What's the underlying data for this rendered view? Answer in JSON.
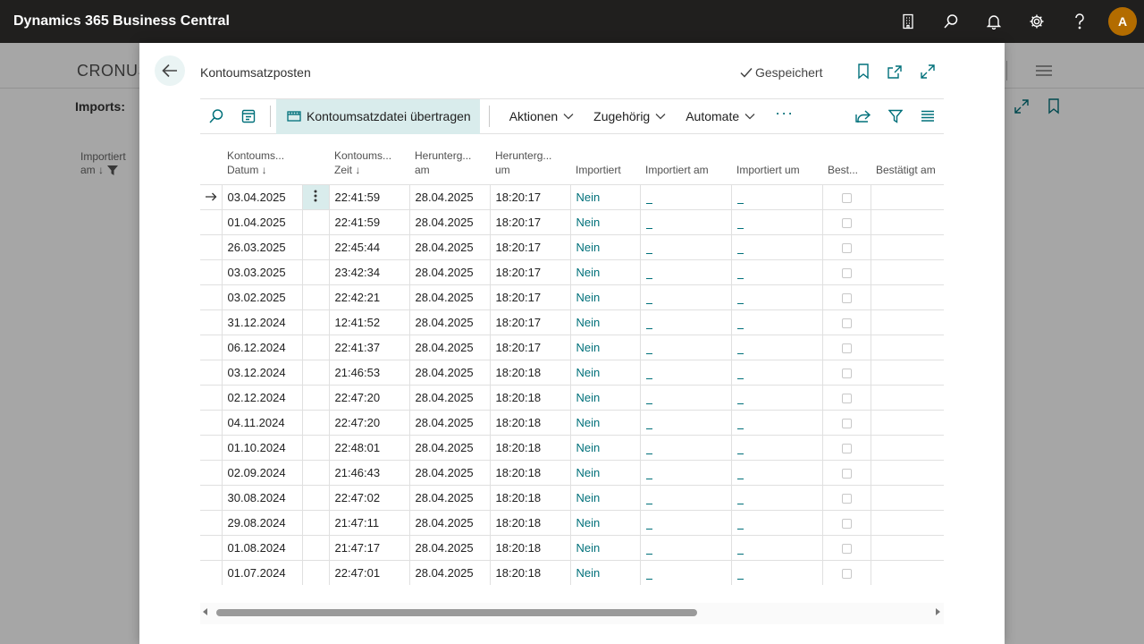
{
  "app": {
    "title": "Dynamics 365 Business Central",
    "avatar_initial": "A"
  },
  "topbar_icons": [
    "company-icon",
    "search-icon",
    "bell-icon",
    "gear-icon",
    "help-icon"
  ],
  "background_page": {
    "company": "CRONUS",
    "section": "Imports:",
    "column_label_line1": "Importiert",
    "column_label_line2": "am ↓"
  },
  "dialog": {
    "title": "Kontoumsatzposten",
    "saved_label": "Gespeichert"
  },
  "actionbar": {
    "primary_label": "Kontoumsatzdatei übertragen",
    "menus": [
      "Aktionen",
      "Zugehörig",
      "Automate"
    ],
    "more": "···"
  },
  "columns": {
    "c1a": "Kontoums...",
    "c1b": "Datum ↓",
    "c2a": "Kontoums...",
    "c2b": "Zeit ↓",
    "c3a": "Herunterg...",
    "c3b": "am",
    "c4a": "Herunterg...",
    "c4b": "um",
    "c5": "Importiert",
    "c6": "Importiert am",
    "c7": "Importiert um",
    "c8": "Best...",
    "c9": "Bestätigt am"
  },
  "rows": [
    {
      "datum": "03.04.2025",
      "zeit": "22:41:59",
      "dl_am": "28.04.2025",
      "dl_um": "18:20:17",
      "importiert": "Nein"
    },
    {
      "datum": "01.04.2025",
      "zeit": "22:41:59",
      "dl_am": "28.04.2025",
      "dl_um": "18:20:17",
      "importiert": "Nein"
    },
    {
      "datum": "26.03.2025",
      "zeit": "22:45:44",
      "dl_am": "28.04.2025",
      "dl_um": "18:20:17",
      "importiert": "Nein"
    },
    {
      "datum": "03.03.2025",
      "zeit": "23:42:34",
      "dl_am": "28.04.2025",
      "dl_um": "18:20:17",
      "importiert": "Nein"
    },
    {
      "datum": "03.02.2025",
      "zeit": "22:42:21",
      "dl_am": "28.04.2025",
      "dl_um": "18:20:17",
      "importiert": "Nein"
    },
    {
      "datum": "31.12.2024",
      "zeit": "12:41:52",
      "dl_am": "28.04.2025",
      "dl_um": "18:20:17",
      "importiert": "Nein"
    },
    {
      "datum": "06.12.2024",
      "zeit": "22:41:37",
      "dl_am": "28.04.2025",
      "dl_um": "18:20:17",
      "importiert": "Nein"
    },
    {
      "datum": "03.12.2024",
      "zeit": "21:46:53",
      "dl_am": "28.04.2025",
      "dl_um": "18:20:18",
      "importiert": "Nein"
    },
    {
      "datum": "02.12.2024",
      "zeit": "22:47:20",
      "dl_am": "28.04.2025",
      "dl_um": "18:20:18",
      "importiert": "Nein"
    },
    {
      "datum": "04.11.2024",
      "zeit": "22:47:20",
      "dl_am": "28.04.2025",
      "dl_um": "18:20:18",
      "importiert": "Nein"
    },
    {
      "datum": "01.10.2024",
      "zeit": "22:48:01",
      "dl_am": "28.04.2025",
      "dl_um": "18:20:18",
      "importiert": "Nein"
    },
    {
      "datum": "02.09.2024",
      "zeit": "21:46:43",
      "dl_am": "28.04.2025",
      "dl_um": "18:20:18",
      "importiert": "Nein"
    },
    {
      "datum": "30.08.2024",
      "zeit": "22:47:02",
      "dl_am": "28.04.2025",
      "dl_um": "18:20:18",
      "importiert": "Nein"
    },
    {
      "datum": "29.08.2024",
      "zeit": "21:47:11",
      "dl_am": "28.04.2025",
      "dl_um": "18:20:18",
      "importiert": "Nein"
    },
    {
      "datum": "01.08.2024",
      "zeit": "21:47:17",
      "dl_am": "28.04.2025",
      "dl_um": "18:20:18",
      "importiert": "Nein"
    },
    {
      "datum": "01.07.2024",
      "zeit": "22:47:01",
      "dl_am": "28.04.2025",
      "dl_um": "18:20:18",
      "importiert": "Nein"
    }
  ],
  "selected_row_index": 0,
  "colors": {
    "accent": "#00707a",
    "topbar": "#201f1e",
    "selection": "#d9ecec",
    "avatar": "#b36c00"
  }
}
